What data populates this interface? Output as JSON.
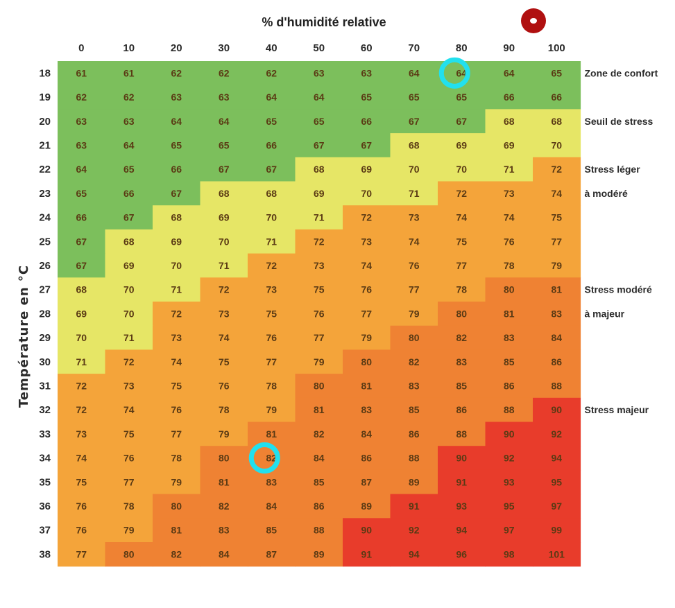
{
  "chart_data": {
    "type": "heatmap",
    "title": "% d'humidité relative",
    "ylabel": "Température en °C",
    "x": [
      0,
      10,
      20,
      30,
      40,
      50,
      60,
      70,
      80,
      90,
      100
    ],
    "y": [
      18,
      19,
      20,
      21,
      22,
      23,
      24,
      25,
      26,
      27,
      28,
      29,
      30,
      31,
      32,
      33,
      34,
      35,
      36,
      37,
      38
    ],
    "values": [
      [
        61,
        61,
        62,
        62,
        62,
        63,
        63,
        64,
        64,
        64,
        65
      ],
      [
        62,
        62,
        63,
        63,
        64,
        64,
        65,
        65,
        65,
        66,
        66
      ],
      [
        63,
        63,
        64,
        64,
        65,
        65,
        66,
        67,
        67,
        68,
        68
      ],
      [
        63,
        64,
        65,
        65,
        66,
        67,
        67,
        68,
        69,
        69,
        70
      ],
      [
        64,
        65,
        66,
        67,
        67,
        68,
        69,
        70,
        70,
        71,
        72
      ],
      [
        65,
        66,
        67,
        68,
        68,
        69,
        70,
        71,
        72,
        73,
        74
      ],
      [
        66,
        67,
        68,
        69,
        70,
        71,
        72,
        73,
        74,
        74,
        75
      ],
      [
        67,
        68,
        69,
        70,
        71,
        72,
        73,
        74,
        75,
        76,
        77
      ],
      [
        67,
        69,
        70,
        71,
        72,
        73,
        74,
        76,
        77,
        78,
        79
      ],
      [
        68,
        70,
        71,
        72,
        73,
        75,
        76,
        77,
        78,
        80,
        81
      ],
      [
        69,
        70,
        72,
        73,
        75,
        76,
        77,
        79,
        80,
        81,
        83
      ],
      [
        70,
        71,
        73,
        74,
        76,
        77,
        79,
        80,
        82,
        83,
        84
      ],
      [
        71,
        72,
        74,
        75,
        77,
        79,
        80,
        82,
        83,
        85,
        86
      ],
      [
        72,
        73,
        75,
        76,
        78,
        80,
        81,
        83,
        85,
        86,
        88
      ],
      [
        72,
        74,
        76,
        78,
        79,
        81,
        83,
        85,
        86,
        88,
        90
      ],
      [
        73,
        75,
        77,
        79,
        81,
        82,
        84,
        86,
        88,
        90,
        92
      ],
      [
        74,
        76,
        78,
        80,
        82,
        84,
        86,
        88,
        90,
        92,
        94
      ],
      [
        75,
        77,
        79,
        81,
        83,
        85,
        87,
        89,
        91,
        93,
        95
      ],
      [
        76,
        78,
        80,
        82,
        84,
        86,
        89,
        91,
        93,
        95,
        97
      ],
      [
        76,
        79,
        81,
        83,
        85,
        88,
        90,
        92,
        94,
        97,
        99
      ],
      [
        77,
        80,
        82,
        84,
        87,
        89,
        91,
        94,
        96,
        98,
        101
      ]
    ],
    "zones": [
      {
        "label": "Zone de confort",
        "min": 0,
        "max": 67,
        "color": "#7cbf5c",
        "label_row": 0
      },
      {
        "label": "Seuil de stress",
        "min": 68,
        "max": 71,
        "color": "#e6e666",
        "label_row": 2
      },
      {
        "label": "Stress léger\nà modéré",
        "min": 72,
        "max": 79,
        "color": "#f4a43a",
        "label_row": 4
      },
      {
        "label": "Stress modéré\nà majeur",
        "min": 80,
        "max": 89,
        "color": "#ef8233",
        "label_row": 9
      },
      {
        "label": "Stress majeur",
        "min": 90,
        "max": 200,
        "color": "#e83c2b",
        "label_row": 14
      }
    ],
    "highlights": [
      {
        "t": 18,
        "rh": 80,
        "color": "#22e0ee"
      },
      {
        "t": 34,
        "rh": 40,
        "color": "#22e0ee"
      }
    ],
    "marker_color": "#b01010"
  }
}
